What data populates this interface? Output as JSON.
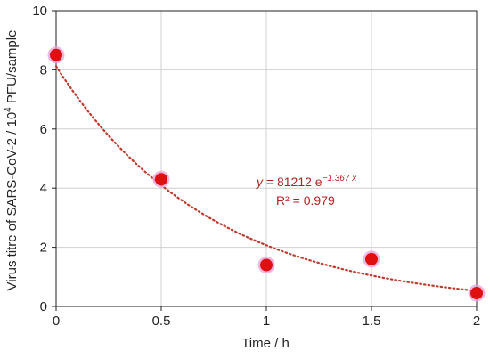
{
  "chart_data": {
    "type": "scatter",
    "xlabel": "Time / h",
    "ylabel_prefix": "Virus titre of SARS-CoV-2 / 10",
    "ylabel_superscript": "4",
    "ylabel_suffix": " PFU/sample",
    "xlim": [
      0,
      2
    ],
    "ylim": [
      0,
      10
    ],
    "x_ticks": [
      "0",
      "0.5",
      "1",
      "1.5",
      "2"
    ],
    "y_ticks": [
      "0",
      "2",
      "4",
      "6",
      "8",
      "10"
    ],
    "grid": true,
    "points": [
      {
        "x": 0,
        "y": 8.5
      },
      {
        "x": 0.5,
        "y": 4.3
      },
      {
        "x": 1,
        "y": 1.4
      },
      {
        "x": 1.5,
        "y": 1.6
      },
      {
        "x": 2,
        "y": 0.45
      }
    ],
    "trendline": {
      "type": "exponential",
      "a": 8.1212,
      "b": -1.367,
      "equation_y": "y",
      "equation_mid": " = 81212 e",
      "equation_exp": "−1.367 x",
      "r2_label": "R² = 0.979"
    },
    "colors": {
      "marker": "#e01010",
      "marker_halo": "#e9a0d8",
      "trend": "#c0392b",
      "grid": "#d0d0d0",
      "axis": "#222222"
    }
  }
}
